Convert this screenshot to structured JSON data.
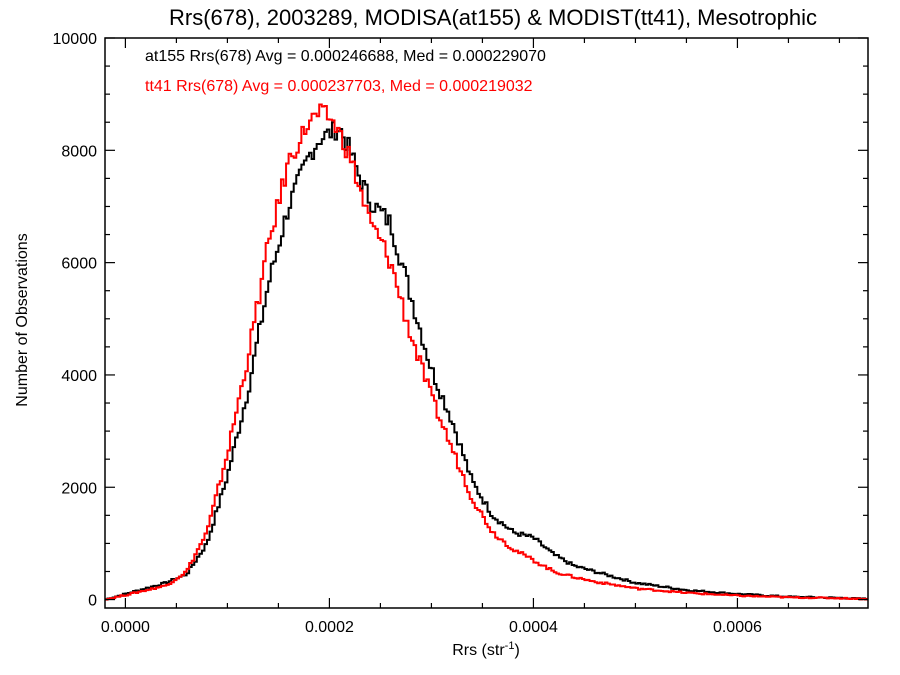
{
  "chart_data": {
    "type": "line",
    "title": "Rrs(678), 2003289, MODISA(at155) & MODIST(tt41), Mesotrophic",
    "xlabel_main": "Rrs (str",
    "xlabel_sup": "-1",
    "xlabel_close": ")",
    "ylabel": "Number of Observations",
    "xlim": [
      -2e-05,
      0.000728
    ],
    "ylim": [
      -150,
      10000
    ],
    "x_ticks": [
      0,
      0.0002,
      0.0004,
      0.0006
    ],
    "x_tick_labels": [
      "0.0000",
      "0.0002",
      "0.0004",
      "0.0006"
    ],
    "y_ticks": [
      0,
      2000,
      4000,
      6000,
      8000,
      10000
    ],
    "y_tick_labels": [
      "0",
      "2000",
      "4000",
      "6000",
      "8000",
      "10000"
    ],
    "legend": [
      {
        "text": "at155 Rrs(678) Avg = 0.000246688, Med = 0.000229070",
        "color": "#000000"
      },
      {
        "text": "tt41 Rrs(678) Avg = 0.000237703, Med = 0.000219032",
        "color": "#ff0000"
      }
    ],
    "series": [
      {
        "name": "at155",
        "color": "#000000",
        "x": [
          -2e-05,
          0.0,
          4e-05,
          6e-05,
          8e-05,
          0.0001,
          0.00012,
          0.00014,
          0.00016,
          0.00018,
          0.00019,
          0.0002,
          0.00021,
          0.00022,
          0.00023,
          0.00024,
          0.00025,
          0.00026,
          0.00028,
          0.0003,
          0.00032,
          0.00034,
          0.00036,
          0.00038,
          0.0004,
          0.00042,
          0.00044,
          0.00046,
          0.0005,
          0.00055,
          0.0006,
          0.00065,
          0.0007,
          0.000728
        ],
        "values": [
          0,
          100,
          300,
          450,
          1000,
          2200,
          3700,
          5600,
          7000,
          7900,
          8200,
          8300,
          8400,
          8000,
          7500,
          7100,
          6900,
          6700,
          5400,
          4100,
          3200,
          2100,
          1500,
          1200,
          1100,
          800,
          600,
          500,
          300,
          170,
          100,
          50,
          30,
          10
        ]
      },
      {
        "name": "tt41",
        "color": "#ff0000",
        "x": [
          -2e-05,
          0.0,
          4e-05,
          6e-05,
          8e-05,
          0.0001,
          0.00012,
          0.00014,
          0.00016,
          0.00018,
          0.00019,
          0.0002,
          0.00021,
          0.00022,
          0.00023,
          0.00024,
          0.00025,
          0.00026,
          0.00028,
          0.0003,
          0.00032,
          0.00034,
          0.00036,
          0.00038,
          0.0004,
          0.00042,
          0.00044,
          0.00046,
          0.0005,
          0.00055,
          0.0006,
          0.00065,
          0.0007,
          0.000728
        ],
        "values": [
          0,
          80,
          250,
          500,
          1200,
          2600,
          4300,
          6300,
          7800,
          8500,
          8650,
          8600,
          8300,
          7900,
          7300,
          6700,
          6400,
          6000,
          4700,
          3600,
          2700,
          1800,
          1200,
          900,
          700,
          500,
          400,
          320,
          200,
          120,
          70,
          40,
          25,
          10
        ]
      }
    ]
  }
}
